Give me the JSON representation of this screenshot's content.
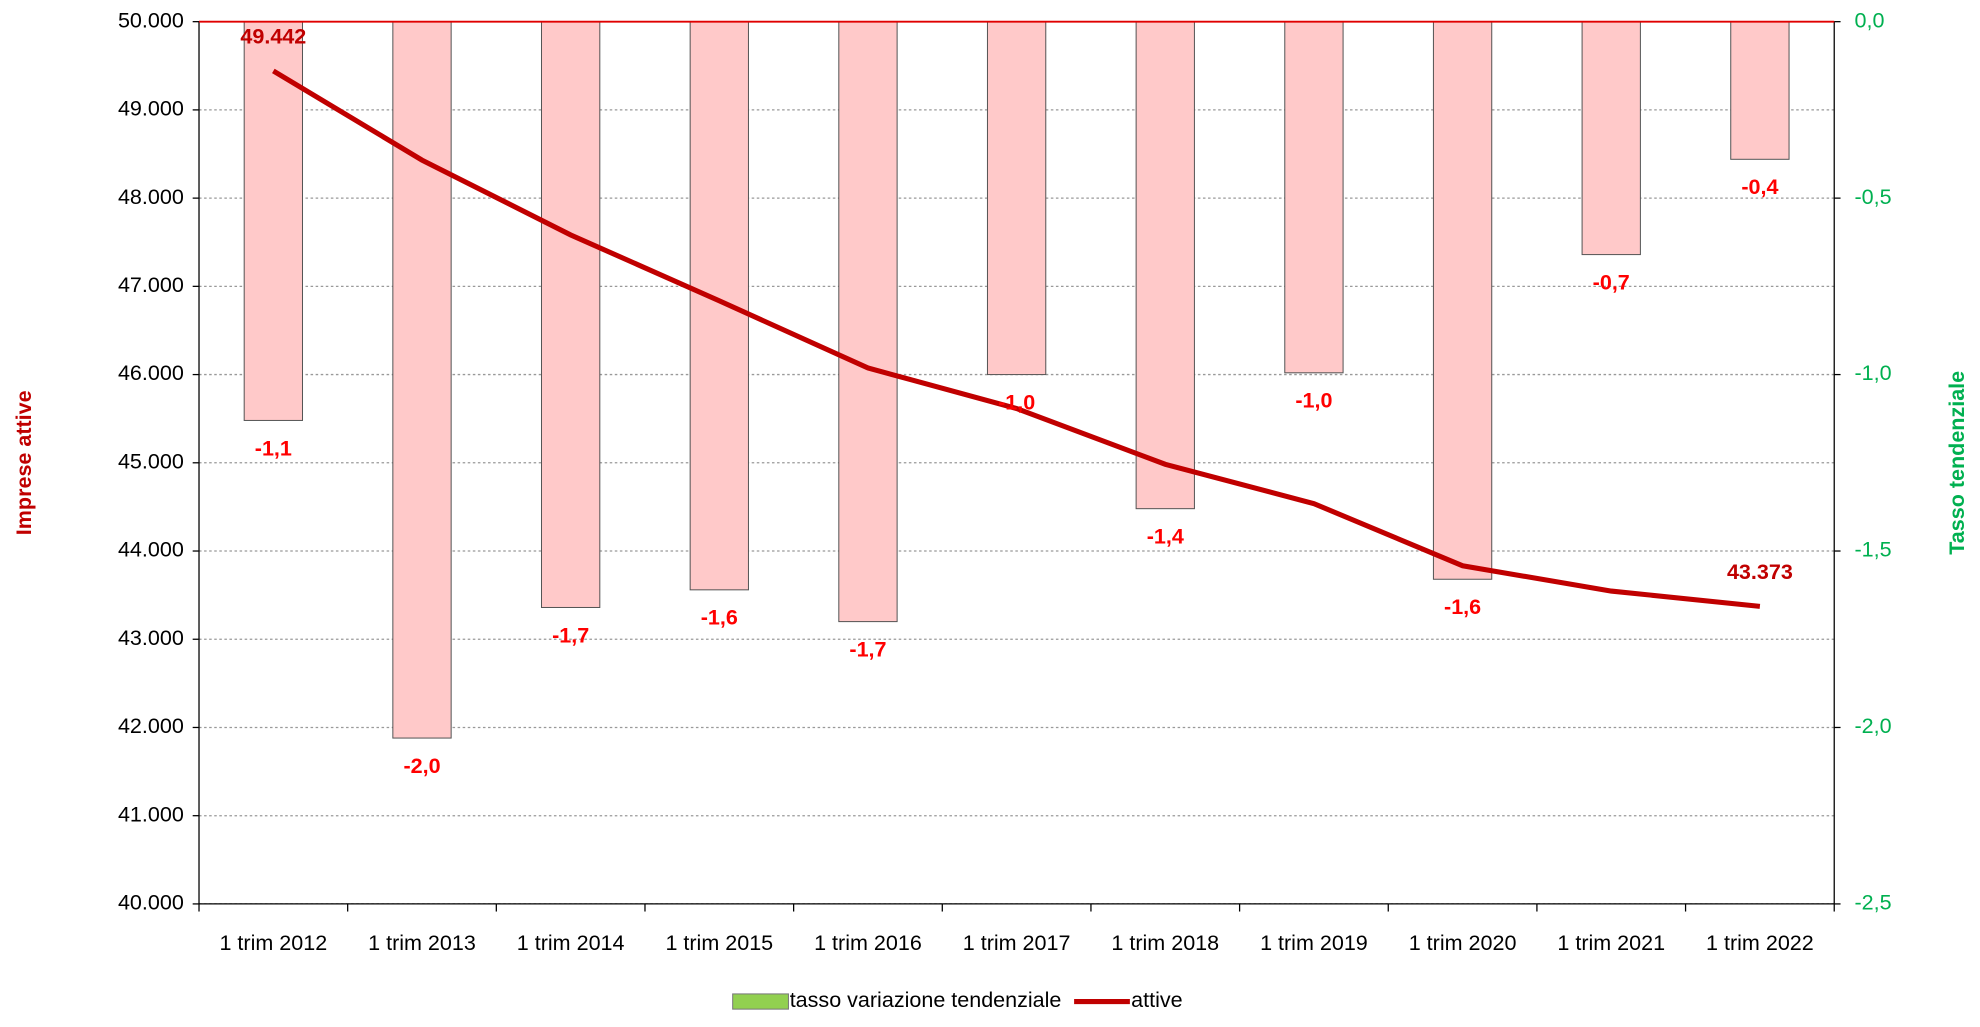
{
  "chart_data": {
    "type": "bar-line",
    "y_label": "Imprese attive",
    "y2_label": "Tasso tendenziale",
    "categories": [
      "1 trim 2012",
      "1 trim 2013",
      "1 trim 2014",
      "1 trim 2015",
      "1 trim 2016",
      "1 trim 2017",
      "1 trim 2018",
      "1 trim 2019",
      "1 trim 2020",
      "1 trim 2021",
      "1 trim 2022"
    ],
    "series": [
      {
        "name": "tasso variazione tendenziale",
        "type": "bar",
        "axis": "y2",
        "color": "#ffc9c9",
        "legend_color": "#92d050",
        "label_color": "#ff0000",
        "values": [
          -1.13,
          -2.03,
          -1.66,
          -1.61,
          -1.7,
          -1.0,
          -1.38,
          -0.995,
          -1.58,
          -0.66,
          -0.39
        ],
        "value_labels": [
          "-1,1",
          "-2,0",
          "-1,7",
          "-1,6",
          "-1,7",
          "-1,0",
          "-1,4",
          "-1,0",
          "-1,6",
          "-0,7",
          "-0,4"
        ]
      },
      {
        "name": "attive",
        "type": "line",
        "color": "#c00000",
        "label_color": "#c00000",
        "values": [
          49442,
          48431,
          47583,
          46836,
          46075,
          45615,
          44983,
          44537,
          43833,
          43546,
          43373
        ],
        "value_labels": [
          "49.442",
          null,
          null,
          null,
          null,
          null,
          null,
          null,
          null,
          null,
          "43.373"
        ]
      }
    ],
    "ylim": [
      40000,
      50000
    ],
    "yticks": [
      {
        "value": 40000,
        "label": "40.000"
      },
      {
        "value": 41000,
        "label": "41.000"
      },
      {
        "value": 42000,
        "label": "42.000"
      },
      {
        "value": 43000,
        "label": "43.000"
      },
      {
        "value": 44000,
        "label": "44.000"
      },
      {
        "value": 45000,
        "label": "45.000"
      },
      {
        "value": 46000,
        "label": "46.000"
      },
      {
        "value": 47000,
        "label": "47.000"
      },
      {
        "value": 48000,
        "label": "48.000"
      },
      {
        "value": 49000,
        "label": "49.000"
      },
      {
        "value": 50000,
        "label": "50.000"
      }
    ],
    "y2lim": [
      -2.5,
      0
    ],
    "y2ticks": [
      {
        "value": -2.5,
        "label": "-2,5"
      },
      {
        "value": -2.0,
        "label": "-2,0"
      },
      {
        "value": -1.5,
        "label": "-1,5"
      },
      {
        "value": -1.0,
        "label": "-1,0"
      },
      {
        "value": -0.5,
        "label": "-0,5"
      },
      {
        "value": 0,
        "label": "0,0"
      }
    ],
    "y_color": "#c00000",
    "y2_color": "#00b050",
    "grid": true,
    "legend": "bottom"
  }
}
